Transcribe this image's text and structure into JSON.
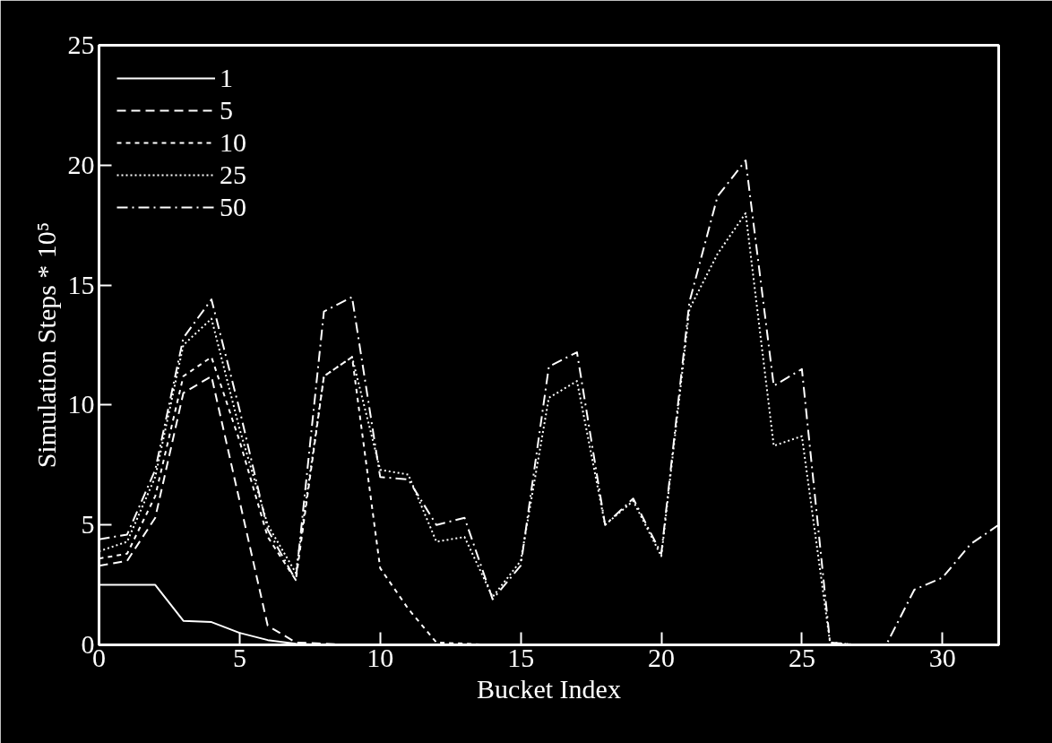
{
  "chart_data": {
    "type": "line",
    "xlabel": "Bucket Index",
    "ylabel": "Simulation Steps * 10⁵",
    "x": [
      0,
      1,
      2,
      3,
      4,
      5,
      6,
      7,
      8,
      9,
      10,
      11,
      12,
      13,
      14,
      15,
      16,
      17,
      18,
      19,
      20,
      21,
      22,
      23,
      24,
      25,
      26,
      27,
      28,
      29,
      30,
      31,
      32
    ],
    "xlim": [
      0,
      32
    ],
    "xticks": [
      0,
      5,
      10,
      15,
      20,
      25,
      30
    ],
    "ylim": [
      0,
      25
    ],
    "yticks": [
      0,
      5,
      10,
      15,
      20,
      25
    ],
    "grid": false,
    "legend": "top left",
    "marker": "none",
    "series": [
      {
        "name": "1",
        "color": "#ffffff",
        "line_style": "solid",
        "values": [
          2.5,
          2.5,
          2.5,
          1.0,
          0.95,
          0.5,
          0.2,
          0.05,
          0,
          0,
          0,
          0,
          0,
          0,
          0,
          0,
          0,
          0,
          0,
          0,
          0,
          0,
          0,
          0,
          0,
          0,
          0,
          0,
          0,
          0,
          0,
          0,
          0
        ]
      },
      {
        "name": "5",
        "color": "#ffffff",
        "line_style": "dashed",
        "values": [
          3.3,
          3.5,
          5.3,
          10.5,
          11.2,
          6,
          0.8,
          0.1,
          0.05,
          0,
          0,
          0,
          0,
          0,
          0,
          0,
          0,
          0,
          0,
          0,
          0,
          0,
          0,
          0,
          0,
          0,
          0,
          0,
          0,
          0,
          0,
          0,
          0
        ]
      },
      {
        "name": "10",
        "color": "#ffffff",
        "line_style": "short_dashed",
        "values": [
          3.6,
          3.8,
          6.2,
          11.2,
          12,
          8.5,
          4.5,
          2.7,
          11.2,
          12,
          3.2,
          1.5,
          0.1,
          0.05,
          0,
          0,
          0,
          0,
          0,
          0,
          0,
          0,
          0,
          0,
          0,
          0,
          0,
          0,
          0,
          0,
          0,
          0,
          0
        ]
      },
      {
        "name": "25",
        "color": "#ffffff",
        "line_style": "dotted",
        "values": [
          3.9,
          4.3,
          7,
          12.5,
          13.6,
          9,
          5,
          3,
          11.2,
          12,
          7.3,
          7.1,
          4.3,
          4.5,
          2,
          3.5,
          10.3,
          11,
          5,
          6,
          3.7,
          14,
          16.3,
          18,
          8.3,
          8.7,
          0.1,
          0,
          0,
          0,
          0,
          0,
          0
        ]
      },
      {
        "name": "50",
        "color": "#ffffff",
        "line_style": "dashdot",
        "values": [
          4.4,
          4.6,
          7.3,
          12.8,
          14.4,
          9.8,
          4.8,
          2.7,
          13.9,
          14.5,
          7,
          6.9,
          5,
          5.3,
          1.9,
          3.3,
          11.6,
          12.2,
          5,
          6.1,
          3.8,
          14.3,
          18.7,
          20.2,
          10.8,
          11.5,
          0.1,
          0,
          0,
          2.3,
          2.8,
          4.2,
          5
        ]
      }
    ]
  }
}
